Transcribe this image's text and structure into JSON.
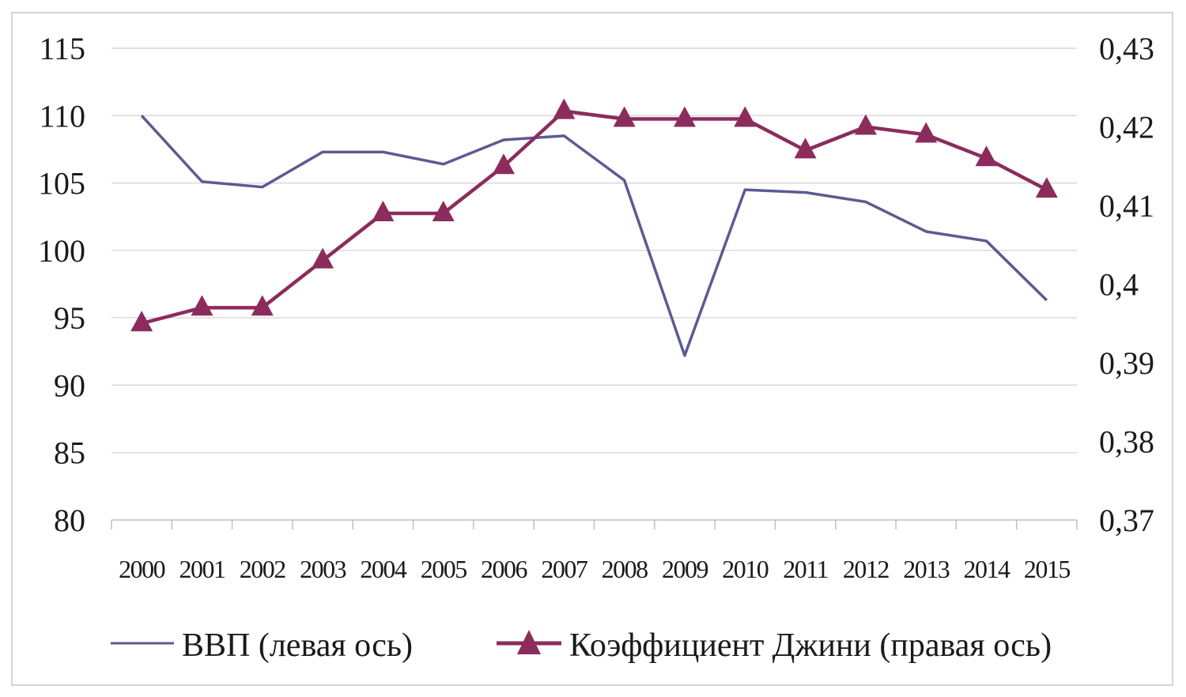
{
  "chart_data": {
    "type": "line",
    "title": "",
    "x": [
      "2000",
      "2001",
      "2002",
      "2003",
      "2004",
      "2005",
      "2006",
      "2007",
      "2008",
      "2009",
      "2010",
      "2011",
      "2012",
      "2013",
      "2014",
      "2015"
    ],
    "y_left": {
      "ticks": [
        "115",
        "110",
        "105",
        "100",
        "95",
        "90",
        "85",
        "80"
      ],
      "ylim": [
        80,
        115
      ]
    },
    "y_right": {
      "ticks": [
        "0,43",
        "0,42",
        "0,41",
        "0,4",
        "0,39",
        "0,38",
        "0,37"
      ],
      "ylim": [
        0.37,
        0.43
      ]
    },
    "grid": true,
    "legend_position": "bottom",
    "series": [
      {
        "name": "ВВП (левая ось)",
        "axis": "left",
        "color": "#5b5b93",
        "marker": "none",
        "values": [
          110.0,
          105.1,
          104.7,
          107.3,
          107.3,
          106.4,
          108.2,
          108.5,
          105.2,
          92.2,
          104.5,
          104.3,
          103.6,
          101.4,
          100.7,
          96.3
        ]
      },
      {
        "name": "Коэффициент Джини (правая ось)",
        "axis": "right",
        "color": "#8b2c5c",
        "marker": "triangle",
        "values": [
          0.395,
          0.397,
          0.397,
          0.403,
          0.409,
          0.409,
          0.415,
          0.422,
          0.421,
          0.421,
          0.421,
          0.417,
          0.42,
          0.419,
          0.416,
          0.412
        ]
      }
    ]
  }
}
